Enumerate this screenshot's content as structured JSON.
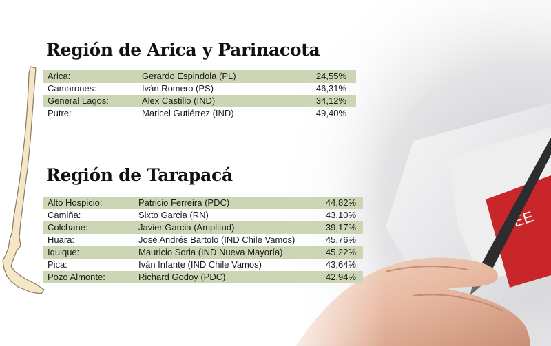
{
  "regions": [
    {
      "title": "Región de Arica y Parinacota",
      "rows": [
        {
          "municipality": "Arica:",
          "candidate": "Gerardo Espindola (PL)",
          "percent": "24,55%"
        },
        {
          "municipality": "Camarones:",
          "candidate": "Iván Romero (PS)",
          "percent": "46,31%"
        },
        {
          "municipality": "General Lagos:",
          "candidate": "Alex Castillo (IND)",
          "percent": "34,12%"
        },
        {
          "municipality": "Putre:",
          "candidate": "Maricel Gutiérrez (IND)",
          "percent": "49,40%"
        }
      ]
    },
    {
      "title": "Región de Tarapacá",
      "rows": [
        {
          "municipality": "Alto Hospicio:",
          "candidate": "Patricio Ferreira (PDC)",
          "percent": "44,82%"
        },
        {
          "municipality": "Camiña:",
          "candidate": "Sixto Garcia (RN)",
          "percent": "43,10%"
        },
        {
          "municipality": "Colchane:",
          "candidate": "Javier Garcia (Amplitud)",
          "percent": "39,17%"
        },
        {
          "municipality": "Huara:",
          "candidate": " José Andrés Bartolo (IND Chile Vamos)",
          "percent": "45,76%"
        },
        {
          "municipality": "Iquique:",
          "candidate": "Mauricio Soria (IND Nueva Mayoría)",
          "percent": "45,22%"
        },
        {
          "municipality": "Pica:",
          "candidate": "Iván Infante (IND Chile Vamos)",
          "percent": "43,64%"
        },
        {
          "municipality": "Pozo Almonte:",
          "candidate": "Richard Godoy (PDC)",
          "percent": "42,94%"
        }
      ]
    }
  ],
  "colors": {
    "row_shade": "#ccd6b4",
    "map_fill": "#f6e6c8",
    "map_stroke": "#8a7a5c"
  },
  "icons": {
    "map": "chile-map-icon",
    "photo": "hand-ballot-photo"
  }
}
